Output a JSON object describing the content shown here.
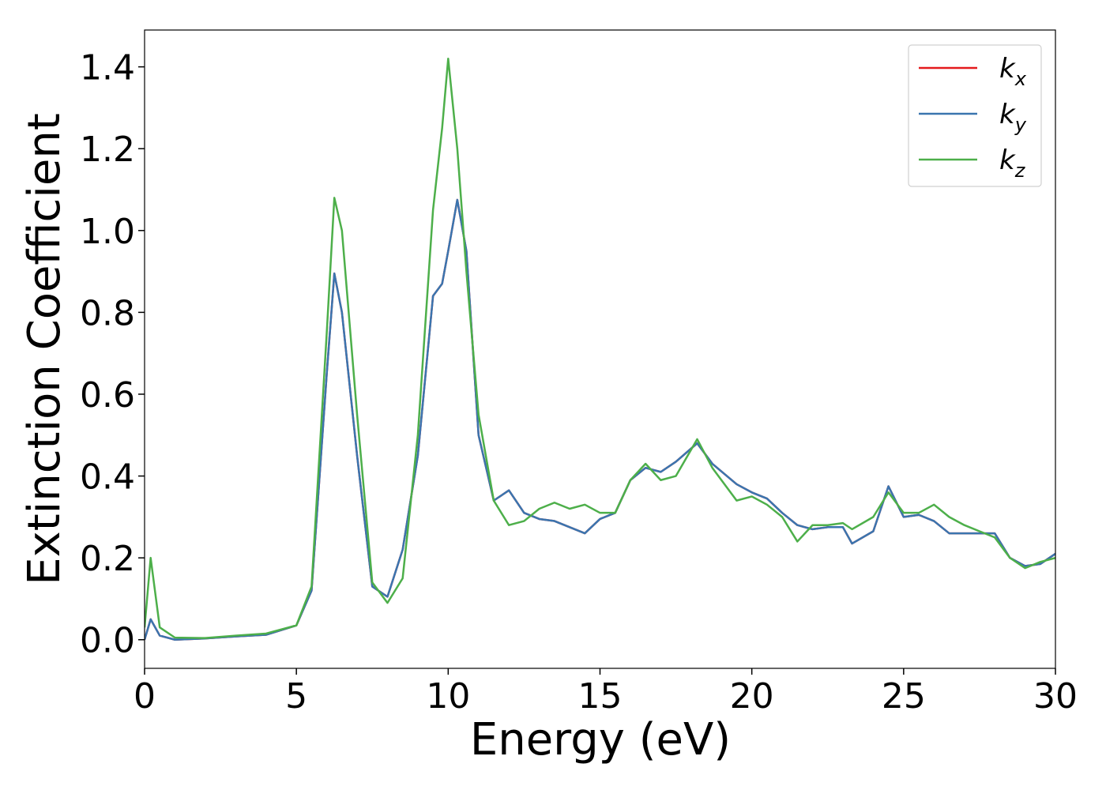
{
  "chart_data": {
    "type": "line",
    "x_label": "Energy (eV)",
    "y_label": "Extinction Coefficient",
    "x": [
      0,
      0.2,
      0.5,
      1,
      2,
      3,
      4,
      5,
      5.5,
      6,
      6.25,
      6.5,
      7,
      7.5,
      8,
      8.5,
      9,
      9.5,
      9.8,
      10,
      10.3,
      10.6,
      11,
      11.5,
      12,
      12.5,
      13,
      13.5,
      14,
      14.5,
      15,
      15.5,
      16,
      16.5,
      17,
      17.5,
      18.2,
      18.7,
      19.5,
      20,
      20.5,
      21,
      21.5,
      22,
      22.5,
      23,
      23.3,
      24,
      24.5,
      25,
      25.5,
      26,
      26.5,
      27,
      27.5,
      28,
      28.5,
      29,
      29.5,
      30
    ],
    "series": [
      {
        "name": "kx",
        "color": "#e41a1c",
        "values": [
          0,
          0.05,
          0.01,
          0,
          0.003,
          0.008,
          0.012,
          0.035,
          0.12,
          0.65,
          0.895,
          0.8,
          0.45,
          0.13,
          0.105,
          0.22,
          0.45,
          0.84,
          0.87,
          0.95,
          1.075,
          0.95,
          0.5,
          0.34,
          0.365,
          0.31,
          0.295,
          0.29,
          0.275,
          0.26,
          0.295,
          0.31,
          0.39,
          0.42,
          0.41,
          0.435,
          0.48,
          0.43,
          0.38,
          0.36,
          0.345,
          0.31,
          0.28,
          0.27,
          0.275,
          0.275,
          0.235,
          0.265,
          0.375,
          0.3,
          0.305,
          0.29,
          0.26,
          0.26,
          0.26,
          0.26,
          0.2,
          0.18,
          0.185,
          0.21
        ]
      },
      {
        "name": "ky",
        "color": "#3a75af",
        "values": [
          0,
          0.05,
          0.01,
          0,
          0.003,
          0.008,
          0.012,
          0.035,
          0.12,
          0.65,
          0.895,
          0.8,
          0.45,
          0.13,
          0.105,
          0.22,
          0.45,
          0.84,
          0.87,
          0.95,
          1.075,
          0.95,
          0.5,
          0.34,
          0.365,
          0.31,
          0.295,
          0.29,
          0.275,
          0.26,
          0.295,
          0.31,
          0.39,
          0.42,
          0.41,
          0.435,
          0.48,
          0.43,
          0.38,
          0.36,
          0.345,
          0.31,
          0.28,
          0.27,
          0.275,
          0.275,
          0.235,
          0.265,
          0.375,
          0.3,
          0.305,
          0.29,
          0.26,
          0.26,
          0.26,
          0.26,
          0.2,
          0.18,
          0.185,
          0.21
        ]
      },
      {
        "name": "kz",
        "color": "#4daf4a",
        "values": [
          0.03,
          0.2,
          0.03,
          0.005,
          0.004,
          0.01,
          0.015,
          0.035,
          0.13,
          0.75,
          1.08,
          1.0,
          0.55,
          0.14,
          0.09,
          0.15,
          0.5,
          1.05,
          1.25,
          1.42,
          1.2,
          0.9,
          0.55,
          0.34,
          0.28,
          0.29,
          0.32,
          0.335,
          0.32,
          0.33,
          0.31,
          0.31,
          0.39,
          0.43,
          0.39,
          0.4,
          0.49,
          0.42,
          0.34,
          0.35,
          0.33,
          0.3,
          0.24,
          0.28,
          0.28,
          0.285,
          0.27,
          0.3,
          0.36,
          0.31,
          0.31,
          0.33,
          0.3,
          0.28,
          0.265,
          0.25,
          0.2,
          0.175,
          0.19,
          0.2
        ]
      }
    ],
    "xlim": [
      0,
      30
    ],
    "xticks": [
      0,
      5,
      10,
      15,
      20,
      25,
      30
    ],
    "ylim": [
      -0.07,
      1.49
    ],
    "yticks": [
      {
        "value": 0,
        "label": "0.0"
      },
      0.2,
      0.4,
      0.6,
      0.8,
      {
        "value": 1,
        "label": "1.0"
      },
      1.2,
      1.4
    ],
    "grid": false,
    "legend": "upper right"
  }
}
